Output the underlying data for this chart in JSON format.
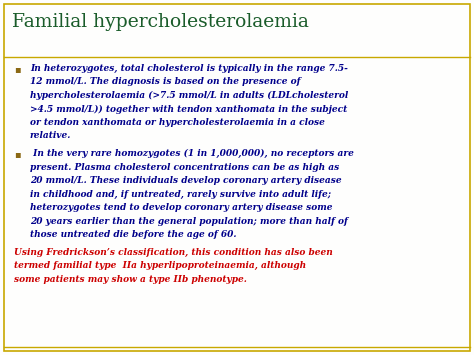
{
  "title": "Familial hypercholesterolaemia",
  "title_color": "#1a5c2a",
  "background_color": "#fefefd",
  "border_color": "#c8a800",
  "bullet_color": "#8B6914",
  "footer_color": "#cc0000",
  "text_color": "#00008B",
  "title_fontsize": 13.5,
  "body_fontsize": 6.5,
  "footer_fontsize": 6.5,
  "b1_lines": [
    "In heterozygotes, total cholesterol is typically in the range 7.5-",
    "12 mmol/L. The diagnosis is based on the presence of",
    "hypercholesterolaemia (>7.5 mmol/L in adults (LDLcholesterol",
    ">4.5 mmol/L)) together with tendon xanthomata in the subject",
    "or tendon xanthomata or hypercholesterolaemia in a close",
    "relative."
  ],
  "b2_lines": [
    " In the very rare homozygotes (1 in 1,000,000), no receptors are",
    "present. Plasma cholesterol concentrations can be as high as",
    "20 mmol/L. These individuals develop coronary artery disease",
    "in childhood and, if untreated, rarely survive into adult life;",
    "heterozygotes tend to develop coronary artery disease some",
    "20 years earlier than the general population; more than half of",
    "those untreated die before the age of 60."
  ],
  "footer_lines": [
    "Using Fredrickson’s classification, this condition has also been",
    "termed familial type  IIa hyperlipoproteinaemia, although",
    "some patients may show a type IIb phenotype."
  ]
}
